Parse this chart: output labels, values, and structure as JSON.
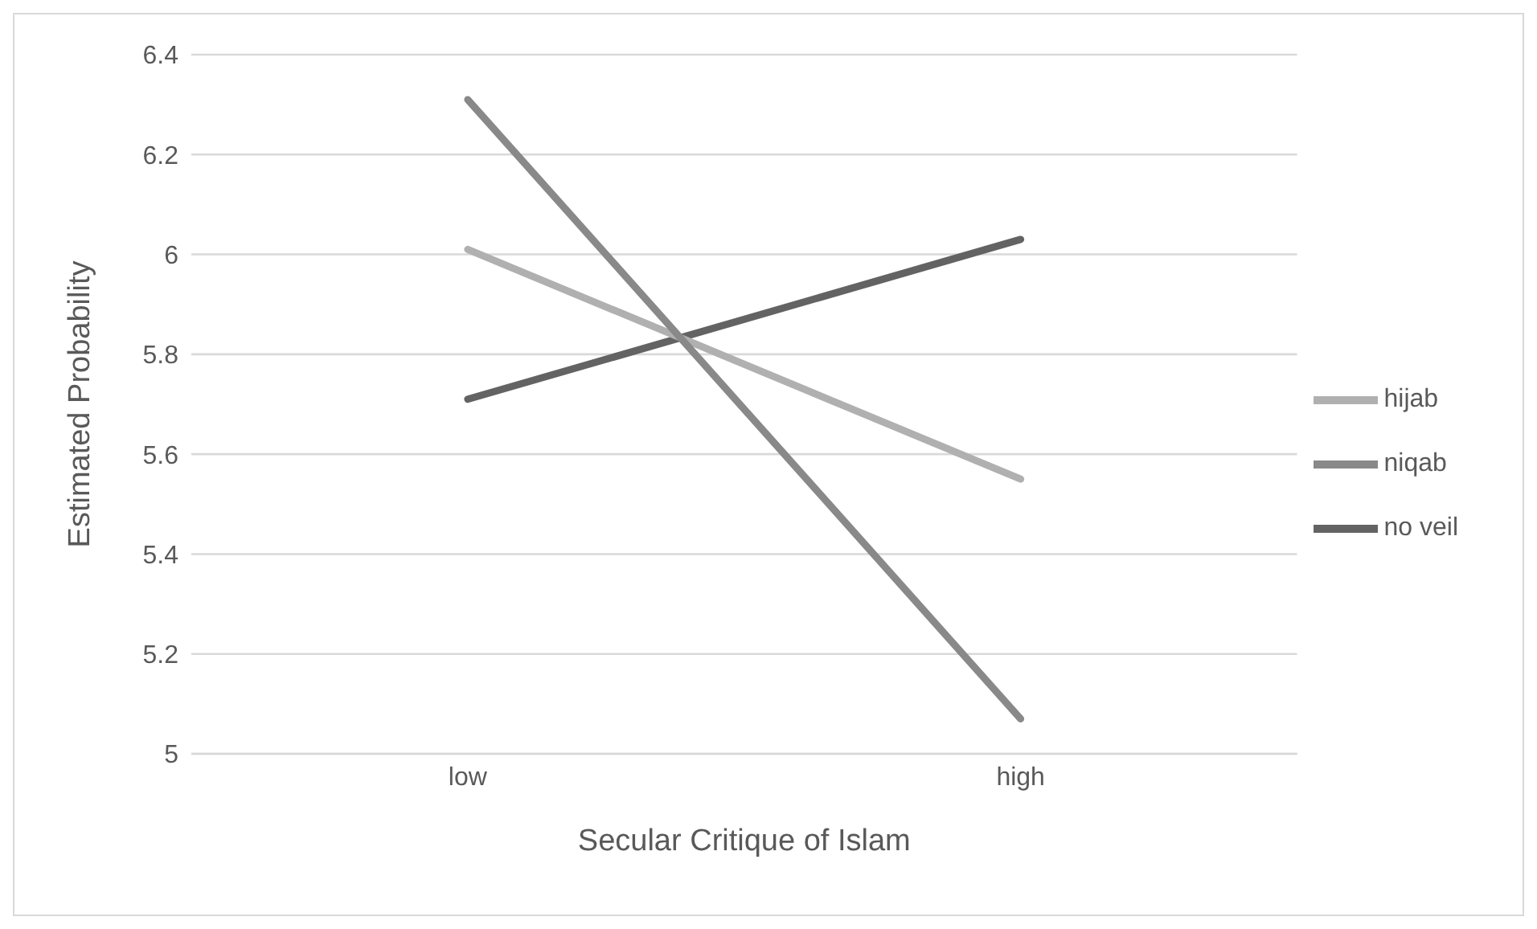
{
  "chart_data": {
    "type": "line",
    "xlabel": "Secular Critique of Islam",
    "ylabel": "Estimated Probability",
    "categories": [
      "low",
      "high"
    ],
    "series": [
      {
        "name": "no veil",
        "color": "#636363",
        "values": [
          5.71,
          6.03
        ]
      },
      {
        "name": "hijab",
        "color": "#b0b0b0",
        "values": [
          6.01,
          5.55
        ]
      },
      {
        "name": "niqab",
        "color": "#898989",
        "values": [
          6.31,
          5.07
        ]
      }
    ],
    "ylim": [
      5,
      6.4
    ],
    "yticks": [
      5,
      5.2,
      5.4,
      5.6,
      5.8,
      6,
      6.2,
      6.4
    ],
    "grid": "y",
    "legend": "right",
    "marker": "none",
    "line_style": "solid"
  }
}
